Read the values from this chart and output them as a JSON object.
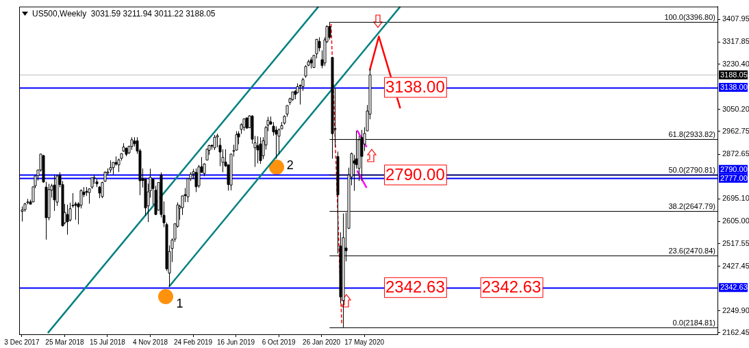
{
  "chart_data": {
    "type": "candlestick",
    "title": "US500,Weekly  3031.59 3211.94 3011.22 3188.05",
    "x": [
      "2017-12-03",
      "2017-12-10",
      "2017-12-17",
      "2017-12-24",
      "2017-12-31",
      "2018-01-07",
      "2018-01-14",
      "2018-01-21",
      "2018-01-28",
      "2018-02-04",
      "2018-02-11",
      "2018-02-18",
      "2018-02-25",
      "2018-03-04",
      "2018-03-11",
      "2018-03-18",
      "2018-03-25",
      "2018-04-01",
      "2018-04-08",
      "2018-04-15",
      "2018-04-22",
      "2018-04-29",
      "2018-05-06",
      "2018-05-13",
      "2018-05-20",
      "2018-05-27",
      "2018-06-03",
      "2018-06-10",
      "2018-06-17",
      "2018-06-24",
      "2018-07-01",
      "2018-07-08",
      "2018-07-15",
      "2018-07-22",
      "2018-07-29",
      "2018-08-05",
      "2018-08-12",
      "2018-08-19",
      "2018-08-26",
      "2018-09-02",
      "2018-09-09",
      "2018-09-16",
      "2018-09-23",
      "2018-09-30",
      "2018-10-07",
      "2018-10-14",
      "2018-10-21",
      "2018-10-28",
      "2018-11-04",
      "2018-11-11",
      "2018-11-18",
      "2018-11-25",
      "2018-12-02",
      "2018-12-09",
      "2018-12-16",
      "2018-12-23",
      "2018-12-30",
      "2019-01-06",
      "2019-01-13",
      "2019-01-20",
      "2019-01-27",
      "2019-02-03",
      "2019-02-10",
      "2019-02-17",
      "2019-02-24",
      "2019-03-03",
      "2019-03-10",
      "2019-03-17",
      "2019-03-24",
      "2019-03-31",
      "2019-04-07",
      "2019-04-14",
      "2019-04-21",
      "2019-04-28",
      "2019-05-05",
      "2019-05-12",
      "2019-05-19",
      "2019-05-26",
      "2019-06-02",
      "2019-06-09",
      "2019-06-16",
      "2019-06-23",
      "2019-06-30",
      "2019-07-07",
      "2019-07-14",
      "2019-07-21",
      "2019-07-28",
      "2019-08-04",
      "2019-08-11",
      "2019-08-18",
      "2019-08-25",
      "2019-09-01",
      "2019-09-08",
      "2019-09-15",
      "2019-09-22",
      "2019-09-29",
      "2019-10-06",
      "2019-10-13",
      "2019-10-20",
      "2019-10-27",
      "2019-11-03",
      "2019-11-10",
      "2019-11-17",
      "2019-11-24",
      "2019-12-01",
      "2019-12-08",
      "2019-12-15",
      "2019-12-22",
      "2019-12-29",
      "2020-01-05",
      "2020-01-12",
      "2020-01-19",
      "2020-01-26",
      "2020-02-02",
      "2020-02-09",
      "2020-02-16",
      "2020-02-23",
      "2020-03-01",
      "2020-03-08",
      "2020-03-15",
      "2020-03-22",
      "2020-03-29",
      "2020-04-05",
      "2020-04-12",
      "2020-04-19",
      "2020-04-26",
      "2020-05-03",
      "2020-05-10",
      "2020-05-17",
      "2020-05-24",
      "2020-05-31"
    ],
    "ohlc": [
      [
        2645,
        2665,
        2605,
        2651
      ],
      [
        2652,
        2679,
        2644,
        2675
      ],
      [
        2680,
        2695,
        2673,
        2683
      ],
      [
        2683,
        2692,
        2673,
        2674
      ],
      [
        2683,
        2743,
        2682,
        2743
      ],
      [
        2747,
        2787,
        2738,
        2786
      ],
      [
        2787,
        2810,
        2768,
        2810
      ],
      [
        2810,
        2873,
        2803,
        2873
      ],
      [
        2867,
        2870,
        2759,
        2762
      ],
      [
        2742,
        2763,
        2533,
        2620
      ],
      [
        2620,
        2755,
        2610,
        2732
      ],
      [
        2730,
        2755,
        2700,
        2747
      ],
      [
        2750,
        2790,
        2647,
        2691
      ],
      [
        2682,
        2787,
        2667,
        2786
      ],
      [
        2790,
        2801,
        2741,
        2752
      ],
      [
        2752,
        2766,
        2585,
        2588
      ],
      [
        2600,
        2675,
        2594,
        2641
      ],
      [
        2633,
        2672,
        2553,
        2604
      ],
      [
        2611,
        2680,
        2605,
        2656
      ],
      [
        2670,
        2718,
        2660,
        2670
      ],
      [
        2675,
        2683,
        2612,
        2669
      ],
      [
        2675,
        2682,
        2594,
        2663
      ],
      [
        2670,
        2733,
        2657,
        2728
      ],
      [
        2722,
        2742,
        2702,
        2712
      ],
      [
        2725,
        2742,
        2707,
        2721
      ],
      [
        2720,
        2736,
        2676,
        2735
      ],
      [
        2742,
        2779,
        2735,
        2779
      ],
      [
        2780,
        2791,
        2755,
        2780
      ],
      [
        2763,
        2774,
        2742,
        2755
      ],
      [
        2742,
        2746,
        2698,
        2718
      ],
      [
        2704,
        2763,
        2698,
        2760
      ],
      [
        2765,
        2804,
        2763,
        2801
      ],
      [
        2798,
        2816,
        2789,
        2802
      ],
      [
        2810,
        2848,
        2799,
        2819
      ],
      [
        2819,
        2840,
        2791,
        2840
      ],
      [
        2840,
        2864,
        2827,
        2833
      ],
      [
        2830,
        2855,
        2802,
        2850
      ],
      [
        2856,
        2876,
        2847,
        2875
      ],
      [
        2885,
        2916,
        2882,
        2901
      ],
      [
        2896,
        2900,
        2864,
        2872
      ],
      [
        2878,
        2906,
        2873,
        2904
      ],
      [
        2903,
        2940,
        2890,
        2930
      ],
      [
        2925,
        2940,
        2903,
        2914
      ],
      [
        2926,
        2940,
        2874,
        2885
      ],
      [
        2886,
        2894,
        2710,
        2767
      ],
      [
        2775,
        2816,
        2740,
        2768
      ],
      [
        2773,
        2778,
        2628,
        2659
      ],
      [
        2667,
        2756,
        2603,
        2723
      ],
      [
        2727,
        2815,
        2700,
        2781
      ],
      [
        2773,
        2775,
        2671,
        2736
      ],
      [
        2730,
        2747,
        2631,
        2633
      ],
      [
        2650,
        2760,
        2649,
        2760
      ],
      [
        2790,
        2800,
        2621,
        2633
      ],
      [
        2630,
        2685,
        2583,
        2600
      ],
      [
        2593,
        2601,
        2409,
        2417
      ],
      [
        2400,
        2510,
        2346,
        2486
      ],
      [
        2498,
        2538,
        2444,
        2532
      ],
      [
        2535,
        2597,
        2524,
        2596
      ],
      [
        2586,
        2681,
        2580,
        2671
      ],
      [
        2658,
        2672,
        2612,
        2665
      ],
      [
        2660,
        2708,
        2631,
        2707
      ],
      [
        2712,
        2738,
        2682,
        2708
      ],
      [
        2703,
        2775,
        2682,
        2775
      ],
      [
        2775,
        2801,
        2766,
        2793
      ],
      [
        2794,
        2814,
        2775,
        2803
      ],
      [
        2800,
        2816,
        2722,
        2743
      ],
      [
        2747,
        2830,
        2739,
        2822
      ],
      [
        2823,
        2861,
        2800,
        2800
      ],
      [
        2796,
        2836,
        2785,
        2834
      ],
      [
        2849,
        2894,
        2849,
        2893
      ],
      [
        2888,
        2910,
        2870,
        2907
      ],
      [
        2908,
        2910,
        2891,
        2905
      ],
      [
        2898,
        2949,
        2889,
        2940
      ],
      [
        2941,
        2954,
        2900,
        2946
      ],
      [
        2908,
        2937,
        2825,
        2881
      ],
      [
        2840,
        2892,
        2801,
        2860
      ],
      [
        2841,
        2892,
        2822,
        2826
      ],
      [
        2830,
        2832,
        2728,
        2752
      ],
      [
        2750,
        2874,
        2729,
        2873
      ],
      [
        2885,
        2910,
        2863,
        2887
      ],
      [
        2889,
        2964,
        2887,
        2950
      ],
      [
        2954,
        2964,
        2912,
        2941
      ],
      [
        2971,
        2996,
        2953,
        2990
      ],
      [
        2979,
        3013,
        2966,
        3013
      ],
      [
        3017,
        3017,
        2975,
        2976
      ],
      [
        2978,
        3027,
        2976,
        3025
      ],
      [
        3024,
        3028,
        2914,
        2932
      ],
      [
        2898,
        2945,
        2822,
        2918
      ],
      [
        2907,
        2944,
        2836,
        2889
      ],
      [
        2913,
        2940,
        2834,
        2847
      ],
      [
        2866,
        2940,
        2853,
        2926
      ],
      [
        2909,
        2985,
        2891,
        2979
      ],
      [
        2988,
        3021,
        2964,
        3007
      ],
      [
        3001,
        3022,
        2990,
        2992
      ],
      [
        2984,
        3000,
        2946,
        2961
      ],
      [
        2968,
        2983,
        2855,
        2952
      ],
      [
        2944,
        2975,
        2873,
        2970
      ],
      [
        2973,
        3000,
        2973,
        2986
      ],
      [
        2996,
        3027,
        2990,
        3023
      ],
      [
        3032,
        3066,
        3021,
        3066
      ],
      [
        3078,
        3097,
        3068,
        3093
      ],
      [
        3090,
        3120,
        3084,
        3120
      ],
      [
        3123,
        3127,
        3091,
        3110
      ],
      [
        3117,
        3154,
        3114,
        3141
      ],
      [
        3144,
        3150,
        3070,
        3146
      ],
      [
        3141,
        3176,
        3124,
        3169
      ],
      [
        3183,
        3226,
        3176,
        3221
      ],
      [
        3226,
        3248,
        3222,
        3240
      ],
      [
        3247,
        3258,
        3213,
        3235
      ],
      [
        3217,
        3267,
        3215,
        3265
      ],
      [
        3271,
        3329,
        3253,
        3329
      ],
      [
        3321,
        3337,
        3281,
        3295
      ],
      [
        3248,
        3285,
        3214,
        3225
      ],
      [
        3235,
        3337,
        3223,
        3327
      ],
      [
        3319,
        3385,
        3315,
        3380
      ],
      [
        3380,
        3396.8,
        3328,
        3337
      ],
      [
        3257,
        3259,
        2855,
        2954
      ],
      [
        2974,
        3136,
        2901,
        2972
      ],
      [
        2863,
        2883,
        2478,
        2711
      ],
      [
        2508,
        2562,
        2280,
        2305
      ],
      [
        2291,
        2637,
        2184.81,
        2541
      ],
      [
        2500,
        2641,
        2447,
        2489
      ],
      [
        2578,
        2819,
        2575,
        2790
      ],
      [
        2782,
        2879,
        2749,
        2875
      ],
      [
        2846,
        2870,
        2727,
        2837
      ],
      [
        2854,
        2965,
        2815,
        2831
      ],
      [
        2816,
        2945,
        2766,
        2930
      ],
      [
        2939,
        2969,
        2766,
        2864
      ],
      [
        2913,
        2980,
        2885,
        2955
      ],
      [
        2965,
        3068,
        2965,
        3044
      ],
      [
        3031.59,
        3211.94,
        3011.22,
        3188.05
      ]
    ],
    "series": [
      {
        "type": "line",
        "color": "#008080",
        "x": [
          "2018-02-09",
          "2020-01-18"
        ],
        "values": [
          2162,
          3459
        ]
      },
      {
        "type": "line",
        "color": "#008080",
        "x": [
          "2018-12-23",
          "2020-08-19"
        ],
        "values": [
          2346,
          3459
        ]
      },
      {
        "type": "line",
        "color": "#ff0000",
        "line_style": "dashed",
        "x": [
          "2020-02-20",
          "2020-03-19"
        ],
        "values": [
          3390,
          2195
        ]
      },
      {
        "type": "line",
        "color": "#ff0000",
        "x": [
          "2020-05-31",
          "2020-06-24",
          "2020-08-19"
        ],
        "values": [
          3205,
          3340,
          3055
        ]
      },
      {
        "type": "line",
        "color": "#ff00ff",
        "x": [
          "2020-04-28",
          "2020-05-23"
        ],
        "values": [
          2968,
          2901
        ]
      },
      {
        "type": "line",
        "color": "#ff00ff",
        "x": [
          "2020-04-28",
          "2020-05-23"
        ],
        "values": [
          2807,
          2739
        ]
      }
    ],
    "xlim": [
      "2017-11-26",
      "2022-11-27"
    ],
    "xticks": [
      {
        "value": "2017-12-03",
        "label": "3 Dec 2017"
      },
      {
        "value": "2018-03-25",
        "label": "25 Mar 2018"
      },
      {
        "value": "2018-07-15",
        "label": "15 Jul 2018"
      },
      {
        "value": "2018-11-04",
        "label": "4 Nov 2018"
      },
      {
        "value": "2019-02-24",
        "label": "24 Feb 2019"
      },
      {
        "value": "2019-06-16",
        "label": "16 Jun 2019"
      },
      {
        "value": "2019-10-06",
        "label": "6 Oct 2019"
      },
      {
        "value": "2020-01-26",
        "label": "26 Jan 2020"
      },
      {
        "value": "2020-05-17",
        "label": "17 May 2020"
      }
    ],
    "ylim": [
      2157,
      3459
    ],
    "yticks": [
      3407.95,
      3317.85,
      {
        "value": 3230.4,
        "label": "3230.40"
      },
      {
        "value": 3050.2,
        "label": "3050.20"
      },
      2962.75,
      2872.65,
      {
        "value": 2695.1,
        "label": "2695.10"
      },
      {
        "value": 2605,
        "label": "2605.00"
      },
      2517.55,
      2427.45,
      {
        "value": 2249.9,
        "label": "2249.90"
      },
      2162.45
    ],
    "ref_lines": [
      {
        "axis": "y",
        "value": 3188.05,
        "label": "3188.05",
        "color": "#c0c0c0"
      },
      {
        "axis": "y",
        "value": 3138,
        "label": "3138.00",
        "color": "#0000ff"
      },
      {
        "axis": "y",
        "value": 2790,
        "label": "2790.00",
        "color": "#0000ff"
      },
      {
        "axis": "y",
        "value": 2777,
        "label": "2777.00",
        "color": "#0000ff"
      },
      {
        "axis": "y",
        "value": 2342.63,
        "label": "2342.63",
        "color": "#0000ff"
      },
      {
        "axis": "y",
        "value": 3396.8,
        "label": "100.0(3396.80)",
        "color": "#000000",
        "line_style": "solid"
      },
      {
        "axis": "y",
        "value": 2933.82,
        "label": "61.8(2933.82)",
        "color": "#000000",
        "line_style": "solid"
      },
      {
        "axis": "y",
        "value": 2790.81,
        "label": "50.0(2790.81)",
        "color": "#000000",
        "line_style": "solid"
      },
      {
        "axis": "y",
        "value": 2647.79,
        "label": "38.2(2647.79)",
        "color": "#000000",
        "line_style": "solid"
      },
      {
        "axis": "y",
        "value": 2470.84,
        "label": "23.6(2470.84)",
        "color": "#000000",
        "line_style": "solid"
      },
      {
        "axis": "y",
        "value": 2184.81,
        "label": "0.0(2184.81)",
        "color": "#000000",
        "line_style": "solid"
      }
    ],
    "annotations": [
      {
        "text": "3138.00",
        "x": "2020-09-27",
        "y": 3138
      },
      {
        "text": "2790.00",
        "x": "2020-09-27",
        "y": 2790
      },
      {
        "text": "2342.63",
        "x": "2020-09-27",
        "y": 2342.63
      },
      {
        "text": "2342.63",
        "x": "2021-06-06",
        "y": 2342.63
      },
      "1",
      "2"
    ]
  }
}
